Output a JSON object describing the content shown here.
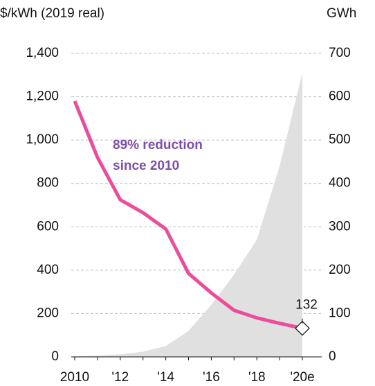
{
  "chart_data": {
    "type": "line",
    "y_axis_label": "$/kWh (2019  real)",
    "y2_axis_label": "GWh",
    "annotation": [
      "89% reduction",
      "since 2010"
    ],
    "annotation_color": "#7e4ea8",
    "categories": [
      "2010",
      null,
      "'12",
      null,
      "'14",
      null,
      "'16",
      null,
      "'18",
      null,
      "'20e"
    ],
    "series": [
      {
        "type": "area",
        "axis": "y2",
        "color": "#e0e0e0",
        "values": [
          1,
          3,
          6,
          12,
          25,
          60,
          120,
          190,
          270,
          440,
          655
        ]
      },
      {
        "type": "line",
        "color": "#ec4c9a",
        "values": [
          1180,
          920,
          725,
          665,
          590,
          385,
          295,
          215,
          180,
          155,
          132
        ],
        "value_labels": [
          null,
          null,
          null,
          null,
          null,
          null,
          null,
          null,
          null,
          null,
          "132"
        ]
      }
    ],
    "ylim": [
      0,
      1400
    ],
    "yticks": [
      0,
      200,
      400,
      600,
      800,
      {
        "value": 1000,
        "label": "1,000"
      },
      {
        "value": 1200,
        "label": "1,200"
      },
      {
        "value": 1400,
        "label": "1,400"
      }
    ],
    "y2lim": [
      0,
      700
    ],
    "y2ticks": [
      0,
      100,
      200,
      300,
      400,
      500,
      600,
      700
    ],
    "grid": true
  }
}
